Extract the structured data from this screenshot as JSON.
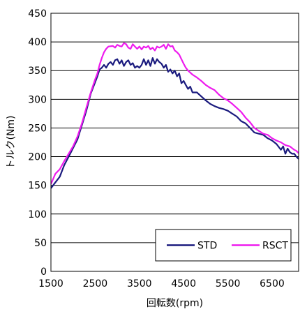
{
  "chart_data": {
    "type": "line",
    "xlabel": "回転数(rpm)",
    "ylabel": "トルク(Nm)",
    "xlim": [
      1500,
      7100
    ],
    "ylim": [
      0,
      450
    ],
    "x_ticks": [
      1500,
      2500,
      3500,
      4500,
      5500,
      6500
    ],
    "y_ticks": [
      0,
      50,
      100,
      150,
      200,
      250,
      300,
      350,
      400,
      450
    ],
    "grid": "horizontal",
    "legend": "bottom-right",
    "series": [
      {
        "name": "STD",
        "color": "#1a1a7e",
        "points": [
          [
            1500,
            145
          ],
          [
            1600,
            155
          ],
          [
            1700,
            165
          ],
          [
            1800,
            185
          ],
          [
            1900,
            200
          ],
          [
            2000,
            215
          ],
          [
            2100,
            230
          ],
          [
            2200,
            255
          ],
          [
            2300,
            280
          ],
          [
            2400,
            310
          ],
          [
            2500,
            330
          ],
          [
            2550,
            340
          ],
          [
            2600,
            352
          ],
          [
            2650,
            355
          ],
          [
            2700,
            360
          ],
          [
            2750,
            355
          ],
          [
            2800,
            362
          ],
          [
            2850,
            365
          ],
          [
            2900,
            360
          ],
          [
            2950,
            368
          ],
          [
            3000,
            370
          ],
          [
            3050,
            362
          ],
          [
            3100,
            368
          ],
          [
            3150,
            358
          ],
          [
            3200,
            365
          ],
          [
            3250,
            368
          ],
          [
            3300,
            360
          ],
          [
            3350,
            363
          ],
          [
            3400,
            355
          ],
          [
            3450,
            358
          ],
          [
            3500,
            355
          ],
          [
            3550,
            360
          ],
          [
            3600,
            370
          ],
          [
            3650,
            360
          ],
          [
            3700,
            368
          ],
          [
            3750,
            358
          ],
          [
            3800,
            372
          ],
          [
            3850,
            362
          ],
          [
            3900,
            370
          ],
          [
            3950,
            365
          ],
          [
            4000,
            362
          ],
          [
            4050,
            355
          ],
          [
            4100,
            360
          ],
          [
            4150,
            348
          ],
          [
            4200,
            352
          ],
          [
            4250,
            345
          ],
          [
            4300,
            350
          ],
          [
            4350,
            340
          ],
          [
            4400,
            345
          ],
          [
            4450,
            328
          ],
          [
            4500,
            332
          ],
          [
            4550,
            325
          ],
          [
            4600,
            318
          ],
          [
            4650,
            322
          ],
          [
            4700,
            312
          ],
          [
            4800,
            312
          ],
          [
            4900,
            305
          ],
          [
            5000,
            298
          ],
          [
            5100,
            292
          ],
          [
            5200,
            288
          ],
          [
            5300,
            285
          ],
          [
            5400,
            283
          ],
          [
            5500,
            280
          ],
          [
            5600,
            275
          ],
          [
            5700,
            270
          ],
          [
            5800,
            262
          ],
          [
            5900,
            258
          ],
          [
            6000,
            250
          ],
          [
            6100,
            242
          ],
          [
            6200,
            240
          ],
          [
            6300,
            238
          ],
          [
            6400,
            232
          ],
          [
            6500,
            228
          ],
          [
            6600,
            222
          ],
          [
            6700,
            212
          ],
          [
            6750,
            218
          ],
          [
            6800,
            205
          ],
          [
            6850,
            214
          ],
          [
            6900,
            208
          ],
          [
            6950,
            205
          ],
          [
            7000,
            205
          ],
          [
            7050,
            200
          ],
          [
            7100,
            196
          ]
        ]
      },
      {
        "name": "RSCT",
        "color": "#ee1bee",
        "points": [
          [
            1500,
            152
          ],
          [
            1600,
            170
          ],
          [
            1700,
            178
          ],
          [
            1800,
            192
          ],
          [
            1900,
            205
          ],
          [
            2000,
            218
          ],
          [
            2100,
            235
          ],
          [
            2200,
            258
          ],
          [
            2300,
            285
          ],
          [
            2400,
            312
          ],
          [
            2500,
            335
          ],
          [
            2550,
            345
          ],
          [
            2600,
            360
          ],
          [
            2650,
            372
          ],
          [
            2700,
            382
          ],
          [
            2750,
            388
          ],
          [
            2800,
            392
          ],
          [
            2900,
            393
          ],
          [
            2950,
            390
          ],
          [
            3000,
            395
          ],
          [
            3050,
            393
          ],
          [
            3100,
            392
          ],
          [
            3150,
            398
          ],
          [
            3200,
            396
          ],
          [
            3250,
            390
          ],
          [
            3300,
            388
          ],
          [
            3350,
            396
          ],
          [
            3400,
            392
          ],
          [
            3450,
            388
          ],
          [
            3500,
            392
          ],
          [
            3550,
            387
          ],
          [
            3600,
            392
          ],
          [
            3650,
            390
          ],
          [
            3700,
            393
          ],
          [
            3750,
            387
          ],
          [
            3800,
            390
          ],
          [
            3850,
            385
          ],
          [
            3900,
            392
          ],
          [
            3950,
            390
          ],
          [
            4000,
            392
          ],
          [
            4050,
            395
          ],
          [
            4100,
            388
          ],
          [
            4150,
            396
          ],
          [
            4200,
            392
          ],
          [
            4250,
            393
          ],
          [
            4300,
            385
          ],
          [
            4350,
            382
          ],
          [
            4400,
            378
          ],
          [
            4450,
            370
          ],
          [
            4500,
            362
          ],
          [
            4550,
            355
          ],
          [
            4600,
            350
          ],
          [
            4700,
            343
          ],
          [
            4800,
            338
          ],
          [
            4900,
            332
          ],
          [
            5000,
            325
          ],
          [
            5100,
            320
          ],
          [
            5200,
            316
          ],
          [
            5300,
            308
          ],
          [
            5400,
            302
          ],
          [
            5500,
            298
          ],
          [
            5600,
            292
          ],
          [
            5700,
            285
          ],
          [
            5800,
            278
          ],
          [
            5900,
            268
          ],
          [
            6000,
            260
          ],
          [
            6100,
            250
          ],
          [
            6200,
            245
          ],
          [
            6300,
            240
          ],
          [
            6400,
            238
          ],
          [
            6500,
            232
          ],
          [
            6600,
            228
          ],
          [
            6700,
            225
          ],
          [
            6800,
            220
          ],
          [
            6900,
            218
          ],
          [
            7000,
            212
          ],
          [
            7050,
            210
          ],
          [
            7100,
            206
          ]
        ]
      }
    ]
  }
}
